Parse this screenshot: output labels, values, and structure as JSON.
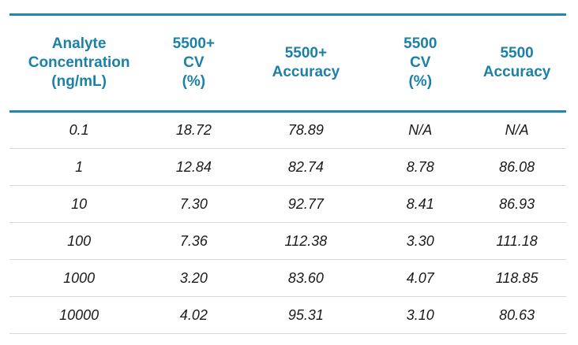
{
  "chart_data": {
    "type": "table",
    "title": "",
    "columns": [
      "Analyte\nConcentration\n(ng/mL)",
      "5500+\nCV\n(%)",
      "5500+\nAccuracy",
      "5500\nCV\n(%)",
      "5500\nAccuracy"
    ],
    "rows": [
      [
        "0.1",
        "18.72",
        "78.89",
        "N/A",
        "N/A"
      ],
      [
        "1",
        "12.84",
        "82.74",
        "8.78",
        "86.08"
      ],
      [
        "10",
        "7.30",
        "92.77",
        "8.41",
        "86.93"
      ],
      [
        "100",
        "7.36",
        "112.38",
        "3.30",
        "111.18"
      ],
      [
        "1000",
        "3.20",
        "83.60",
        "4.07",
        "118.85"
      ],
      [
        "10000",
        "4.02",
        "95.31",
        "3.10",
        "80.63"
      ]
    ]
  },
  "colors": {
    "header_text": "#1C80A8",
    "rule_teal": "#2187AE",
    "row_divider": "#D9D9D9",
    "data_text": "#1A1A1A",
    "background": "#FFFFFF"
  }
}
